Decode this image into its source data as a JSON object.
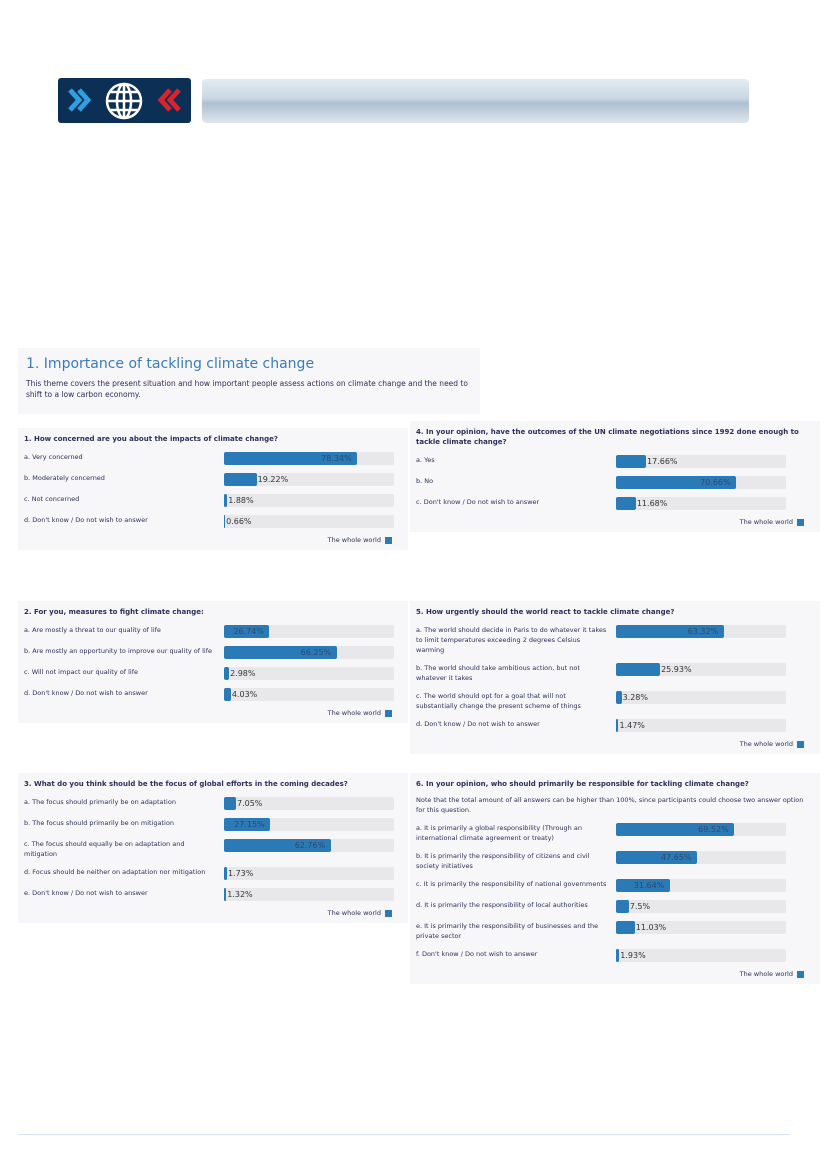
{
  "section": {
    "title": "1. Importance of tackling climate change",
    "intro": "This theme covers the present situation and how important people assess actions on climate change and the need to shift to a low carbon economy."
  },
  "questions": [
    {
      "title": "1. How concerned are you about the impacts of climate change?",
      "legend": "The whole world",
      "answers": [
        {
          "label": "a. Very concerned",
          "value": 78.34,
          "value_label": "78.34%"
        },
        {
          "label": "b. Moderately concerned",
          "value": 19.22,
          "value_label": "19.22%"
        },
        {
          "label": "c. Not concerned",
          "value": 1.88,
          "value_label": "1.88%"
        },
        {
          "label": "d. Don't know / Do not wish to answer",
          "value": 0.66,
          "value_label": "0.66%"
        }
      ]
    },
    {
      "title": "2. For you, measures to fight climate change:",
      "legend": "The whole world",
      "answers": [
        {
          "label": "a. Are mostly a threat to our quality of life",
          "value": 26.74,
          "value_label": "26.74%"
        },
        {
          "label": "b. Are mostly an opportunity to improve our quality of life",
          "value": 66.25,
          "value_label": "66.25%"
        },
        {
          "label": "c. Will not impact our quality of life",
          "value": 2.98,
          "value_label": "2.98%"
        },
        {
          "label": "d. Don't know / Do not wish to answer",
          "value": 4.03,
          "value_label": "4.03%"
        }
      ]
    },
    {
      "title": "3. What do you think should be the focus of global efforts in the coming decades?",
      "legend": "The whole world",
      "answers": [
        {
          "label": "a. The focus should primarily be on adaptation",
          "value": 7.05,
          "value_label": "7.05%"
        },
        {
          "label": "b. The focus should primarily be on mitigation",
          "value": 27.15,
          "value_label": "27.15%"
        },
        {
          "label": "c. The focus should equally be on adaptation and mitigation",
          "value": 62.76,
          "value_label": "62.76%"
        },
        {
          "label": "d. Focus should be neither on adaptation nor mitigation",
          "value": 1.73,
          "value_label": "1.73%"
        },
        {
          "label": "e. Don't know / Do not wish to answer",
          "value": 1.32,
          "value_label": "1.32%"
        }
      ]
    },
    {
      "title": "4. In your opinion, have the outcomes of the UN climate negotiations since 1992 done enough to tackle climate change?",
      "legend": "The whole world",
      "answers": [
        {
          "label": "a. Yes",
          "value": 17.66,
          "value_label": "17.66%"
        },
        {
          "label": "b. No",
          "value": 70.66,
          "value_label": "70.66%"
        },
        {
          "label": "c. Don't know / Do not wish to answer",
          "value": 11.68,
          "value_label": "11.68%"
        }
      ]
    },
    {
      "title": "5. How urgently should the world react to tackle climate change?",
      "legend": "The whole world",
      "answers": [
        {
          "label": "a. The world should decide in Paris to do whatever it takes to limit temperatures exceeding 2 degrees Celsius warming",
          "value": 63.32,
          "value_label": "63.32%"
        },
        {
          "label": "b. The world should take ambitious action, but not whatever it takes",
          "value": 25.93,
          "value_label": "25.93%"
        },
        {
          "label": "c. The world should opt for a goal that will not substantially change the present scheme of things",
          "value": 3.28,
          "value_label": "3.28%"
        },
        {
          "label": "d. Don't know / Do not wish to answer",
          "value": 1.47,
          "value_label": "1.47%"
        }
      ]
    },
    {
      "title": "6. In your opinion, who should primarily be responsible for tackling climate change?",
      "legend": "The whole world",
      "note": "Note that the total amount of all answers can be higher than 100%, since participants could choose two answer option for this question.",
      "answers": [
        {
          "label": "a. It is primarily a global responsibility (Through an international climate agreement or treaty)",
          "value": 69.52,
          "value_label": "69.52%"
        },
        {
          "label": "b. It is primarily the responsibility of citizens and civil society initiatives",
          "value": 47.65,
          "value_label": "47.65%"
        },
        {
          "label": "c. It is primarily the responsibility of national governments",
          "value": 31.64,
          "value_label": "31.64%"
        },
        {
          "label": "d. It is primarily the responsibility of local authorities",
          "value": 7.5,
          "value_label": "7.5%"
        },
        {
          "label": "e. It is primarily the responsibility of businesses and the private sector",
          "value": 11.03,
          "value_label": "11.03%"
        },
        {
          "label": "f. Don't know / Do not wish to answer",
          "value": 1.93,
          "value_label": "1.93%"
        }
      ]
    }
  ]
}
